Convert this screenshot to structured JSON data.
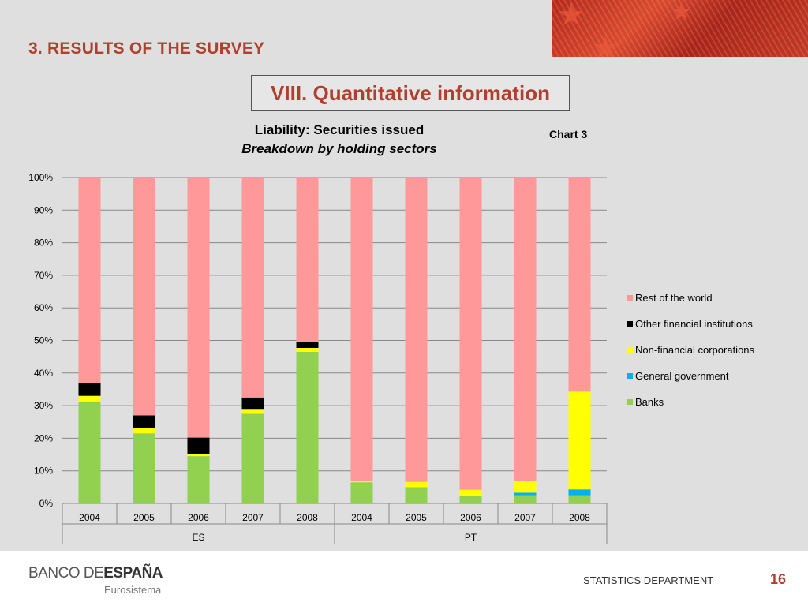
{
  "slide": {
    "section_title": "3. RESULTS OF THE SURVEY",
    "box_title": "VIII. Quantitative information",
    "chart_number": "Chart 3"
  },
  "footer": {
    "logo_main": "BANCO DE",
    "logo_bold": "ESPAÑA",
    "logo_sub": "Eurosistema",
    "department": "STATISTICS DEPARTMENT",
    "page_number": "16"
  },
  "colors": {
    "title_red": "#b0402d",
    "rest_of_world": "#ff9999",
    "other_fin": "#000000",
    "non_fin_corp": "#ffff00",
    "general_gov": "#00b0f0",
    "banks": "#92d050"
  },
  "chart_data": {
    "type": "bar",
    "stacked": true,
    "percent": true,
    "title": "Liability: Securities issued",
    "subtitle": "Breakdown by holding sectors",
    "categories": [
      "2004",
      "2005",
      "2006",
      "2007",
      "2008",
      "2004",
      "2005",
      "2006",
      "2007",
      "2008"
    ],
    "groups": [
      {
        "label": "ES",
        "span": [
          0,
          4
        ]
      },
      {
        "label": "PT",
        "span": [
          5,
          9
        ]
      }
    ],
    "ylim": [
      0,
      100
    ],
    "yticks": [
      0,
      10,
      20,
      30,
      40,
      50,
      60,
      70,
      80,
      90,
      100
    ],
    "ytick_labels": [
      "0%",
      "10%",
      "20%",
      "30%",
      "40%",
      "50%",
      "60%",
      "70%",
      "80%",
      "90%",
      "100%"
    ],
    "grid": true,
    "legend_position": "right",
    "series": [
      {
        "name": "Banks",
        "color": "#92d050",
        "values": [
          31,
          21.5,
          14.5,
          27.5,
          46.5,
          6.5,
          5,
          2.2,
          2.5,
          2.5
        ]
      },
      {
        "name": "General government",
        "color": "#00b0f0",
        "values": [
          0,
          0,
          0,
          0,
          0,
          0,
          0,
          0,
          0.8,
          1.8
        ]
      },
      {
        "name": "Non-financial corporations",
        "color": "#ffff00",
        "values": [
          2,
          1.5,
          0.7,
          1.5,
          1.2,
          0.5,
          1.6,
          2,
          3.5,
          30
        ]
      },
      {
        "name": "Other financial institutions",
        "color": "#000000",
        "values": [
          4,
          4,
          5,
          3.5,
          1.8,
          0,
          0,
          0,
          0,
          0
        ]
      },
      {
        "name": "Rest of the world",
        "color": "#ff9999",
        "values": [
          63,
          73,
          79.8,
          67.5,
          50.5,
          93,
          93.4,
          95.8,
          93.2,
          65.7
        ]
      }
    ]
  }
}
